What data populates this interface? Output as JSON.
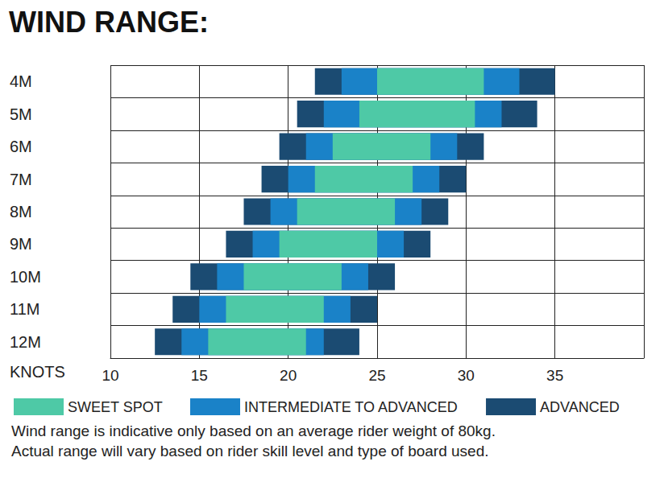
{
  "chart_data": {
    "type": "range_bar",
    "orientation": "horizontal",
    "title": "WIND RANGE:",
    "xlabel": "KNOTS",
    "categories": [
      "4M",
      "5M",
      "6M",
      "7M",
      "8M",
      "9M",
      "10M",
      "11M",
      "12M"
    ],
    "series": [
      {
        "name": "SWEET SPOT",
        "color": "#4ec9a6",
        "values": [
          [
            25,
            31
          ],
          [
            24,
            30.5
          ],
          [
            22.5,
            28
          ],
          [
            21.5,
            27
          ],
          [
            20.5,
            26
          ],
          [
            19.5,
            25
          ],
          [
            17.5,
            23
          ],
          [
            16.5,
            22
          ],
          [
            15.5,
            21
          ]
        ]
      },
      {
        "name": "INTERMEDIATE TO ADVANCED",
        "color": "#1a82c8",
        "values": [
          [
            23,
            33
          ],
          [
            22,
            32
          ],
          [
            21,
            29.5
          ],
          [
            20,
            28.5
          ],
          [
            19,
            27.5
          ],
          [
            18,
            26.5
          ],
          [
            16,
            24.5
          ],
          [
            15,
            23.5
          ],
          [
            14,
            22
          ]
        ]
      },
      {
        "name": "ADVANCED",
        "color": "#1b4b72",
        "values": [
          [
            21.5,
            35
          ],
          [
            20.5,
            34
          ],
          [
            19.5,
            31
          ],
          [
            18.5,
            30
          ],
          [
            17.5,
            29
          ],
          [
            16.5,
            28
          ],
          [
            14.5,
            26
          ],
          [
            13.5,
            25
          ],
          [
            12.5,
            24
          ]
        ]
      }
    ],
    "xlim": [
      10,
      40
    ],
    "xticks": [
      10,
      15,
      20,
      25,
      30,
      35
    ],
    "grid": true,
    "legend": "bottom left",
    "annotations": [
      "Wind range is indicative only based on an average rider weight of 80kg.",
      "Actual range will vary based on rider skill level and type of board used."
    ]
  }
}
